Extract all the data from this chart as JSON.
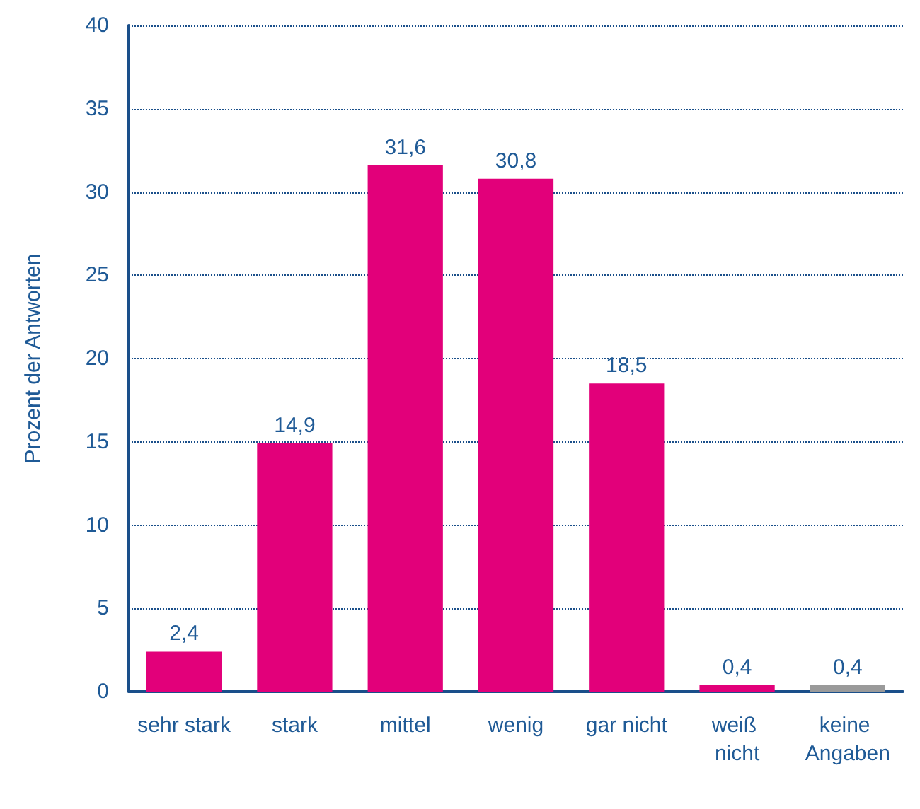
{
  "chart_data": {
    "type": "bar",
    "ylabel": "Prozent der Antworten",
    "categories": [
      "sehr stark",
      "stark",
      "mittel",
      "wenig",
      "gar nicht",
      "weiß nicht",
      "keine Angaben"
    ],
    "values": [
      2.4,
      14.9,
      31.6,
      30.8,
      18.5,
      0.4,
      0.4
    ],
    "colors": [
      "#e2007a",
      "#e2007a",
      "#e2007a",
      "#e2007a",
      "#e2007a",
      "#e2007a",
      "#9a9a9a"
    ],
    "value_labels": [
      "2,4",
      "14,9",
      "31,6",
      "30,8",
      "18,5",
      "0,4",
      "0,4"
    ],
    "ylim": [
      0,
      40
    ],
    "yticks": [
      0,
      5,
      10,
      15,
      20,
      25,
      30,
      35,
      40
    ],
    "grid": "y"
  }
}
